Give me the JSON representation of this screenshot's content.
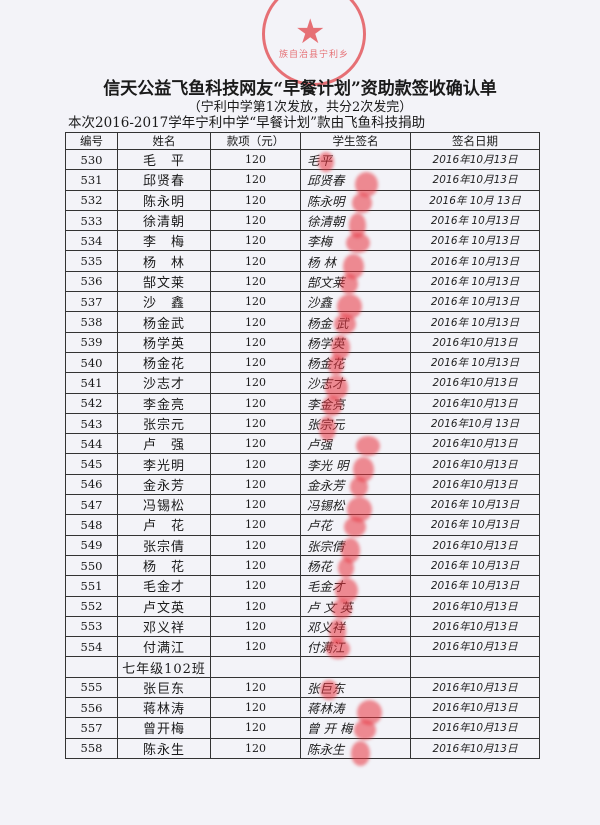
{
  "stamp_text": "族自治县宁利乡",
  "title": "信天公益飞鱼科技网友“早餐计划”资助款签收确认单",
  "subtitle": "（宁利中学第1次发放，共分2次发完）",
  "intro": "本次2016-2017学年宁利中学“早餐计划”款由飞鱼科技捐助",
  "headers": [
    "编号",
    "姓名",
    "款项（元）",
    "学生签名",
    "签名日期"
  ],
  "rows": [
    {
      "id": "530",
      "name": "毛　平",
      "amount": "120",
      "signature": "毛平",
      "date": "2016年10月13日"
    },
    {
      "id": "531",
      "name": "邱贤春",
      "amount": "120",
      "signature": "邱贤春",
      "date": "2016年10月13日"
    },
    {
      "id": "532",
      "name": "陈永明",
      "amount": "120",
      "signature": "陈永明",
      "date": "2016年 10月 13日"
    },
    {
      "id": "533",
      "name": "徐清朝",
      "amount": "120",
      "signature": "徐清朝",
      "date": "2016年 10月13日"
    },
    {
      "id": "534",
      "name": "李　梅",
      "amount": "120",
      "signature": "李梅",
      "date": "2016年 10月13日"
    },
    {
      "id": "535",
      "name": "杨　林",
      "amount": "120",
      "signature": "杨 林",
      "date": "2016年 10月13日"
    },
    {
      "id": "536",
      "name": "郜文莱",
      "amount": "120",
      "signature": "郜文莱",
      "date": "2016年 10月13日"
    },
    {
      "id": "537",
      "name": "沙　鑫",
      "amount": "120",
      "signature": "沙鑫",
      "date": "2016年 10月13日"
    },
    {
      "id": "538",
      "name": "杨金武",
      "amount": "120",
      "signature": "杨金 武",
      "date": "2016年 10月13日"
    },
    {
      "id": "539",
      "name": "杨学英",
      "amount": "120",
      "signature": "杨学英",
      "date": "2016年10月13日"
    },
    {
      "id": "540",
      "name": "杨金花",
      "amount": "120",
      "signature": "杨金花",
      "date": "2016年 10月13日"
    },
    {
      "id": "541",
      "name": "沙志才",
      "amount": "120",
      "signature": "沙志才",
      "date": "2016年10月13日"
    },
    {
      "id": "542",
      "name": "李金亮",
      "amount": "120",
      "signature": "李金亮",
      "date": "2016年10月13日"
    },
    {
      "id": "543",
      "name": "张宗元",
      "amount": "120",
      "signature": "张宗元",
      "date": "2016年10月 13日"
    },
    {
      "id": "544",
      "name": "卢　强",
      "amount": "120",
      "signature": "卢强",
      "date": "2016年10月13日"
    },
    {
      "id": "545",
      "name": "李光明",
      "amount": "120",
      "signature": "李光 明",
      "date": "2016年10月13日"
    },
    {
      "id": "546",
      "name": "金永芳",
      "amount": "120",
      "signature": "金永芳",
      "date": "2016年10月13日"
    },
    {
      "id": "547",
      "name": "冯锡松",
      "amount": "120",
      "signature": "冯锡松",
      "date": "2016年 10月13日"
    },
    {
      "id": "548",
      "name": "卢　花",
      "amount": "120",
      "signature": "卢花",
      "date": "2016年 10月13日"
    },
    {
      "id": "549",
      "name": "张宗倩",
      "amount": "120",
      "signature": "张宗倩",
      "date": "2016年10月13日"
    },
    {
      "id": "550",
      "name": "杨　花",
      "amount": "120",
      "signature": "杨花",
      "date": "2016年 10月13日"
    },
    {
      "id": "551",
      "name": "毛金才",
      "amount": "120",
      "signature": "毛金才",
      "date": "2016年 10月13日"
    },
    {
      "id": "552",
      "name": "卢文英",
      "amount": "120",
      "signature": "卢 文 英",
      "date": "2016年10月13日"
    },
    {
      "id": "553",
      "name": "邓义祥",
      "amount": "120",
      "signature": "邓义祥",
      "date": "2016年10月13日"
    },
    {
      "id": "554",
      "name": "付满江",
      "amount": "120",
      "signature": "付满江",
      "date": "2016年10月13日"
    },
    {
      "id": "",
      "name": "七年级102班",
      "amount": "",
      "signature": "",
      "date": ""
    },
    {
      "id": "555",
      "name": "张巨东",
      "amount": "120",
      "signature": "张巨东",
      "date": "2016年10月13日"
    },
    {
      "id": "556",
      "name": "蒋林涛",
      "amount": "120",
      "signature": "蒋林涛",
      "date": "2016年10月13日"
    },
    {
      "id": "557",
      "name": "曾开梅",
      "amount": "120",
      "signature": "曾 开 梅",
      "date": "2016年10月13日"
    },
    {
      "id": "558",
      "name": "陈永生",
      "amount": "120",
      "signature": "陈永生",
      "date": "2016年10月13日"
    }
  ],
  "colors": {
    "ink": "#1a1a1a",
    "stamp_red": "#e2454a",
    "paper": "#f3f3f8"
  }
}
